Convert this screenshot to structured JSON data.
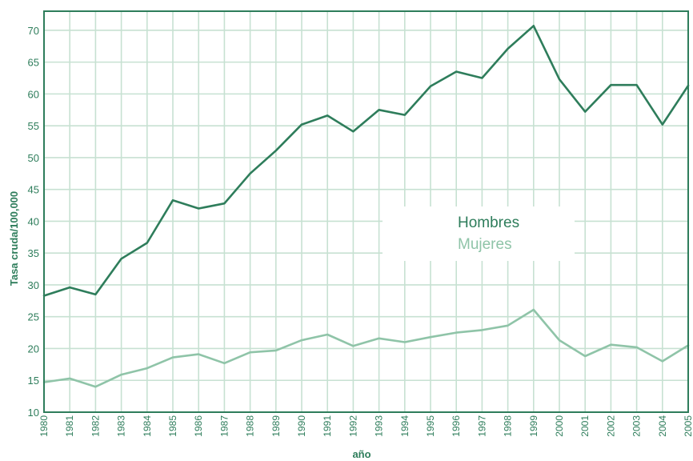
{
  "chart_data": {
    "type": "line",
    "xlabel": "año",
    "ylabel": "Tasa cruda/100,000",
    "ylim": [
      10,
      73
    ],
    "yticks": [
      10,
      15,
      20,
      25,
      30,
      35,
      40,
      45,
      50,
      55,
      60,
      65,
      70
    ],
    "x": [
      1980,
      1981,
      1982,
      1983,
      1984,
      1985,
      1986,
      1987,
      1988,
      1989,
      1990,
      1991,
      1992,
      1993,
      1994,
      1995,
      1996,
      1997,
      1998,
      1999,
      2000,
      2001,
      2002,
      2003,
      2004,
      2005
    ],
    "grid": true,
    "legend_position": "center-right",
    "series": [
      {
        "name": "Hombres",
        "color": "#2e7d5b",
        "values": [
          28.3,
          29.6,
          28.5,
          34.1,
          36.6,
          43.3,
          42.0,
          42.8,
          47.5,
          51.1,
          55.2,
          56.6,
          54.1,
          57.5,
          56.7,
          61.2,
          63.5,
          62.5,
          67.1,
          70.7,
          62.3,
          57.2,
          61.4,
          61.4,
          55.2,
          61.3
        ]
      },
      {
        "name": "Mujeres",
        "color": "#8fc4a8",
        "values": [
          14.7,
          15.3,
          14.0,
          15.9,
          16.9,
          18.6,
          19.1,
          17.7,
          19.4,
          19.7,
          21.3,
          22.2,
          20.4,
          21.6,
          21.0,
          21.8,
          22.5,
          22.9,
          23.6,
          26.1,
          21.3,
          18.8,
          20.6,
          20.2,
          18.0,
          20.5
        ]
      }
    ],
    "colors": {
      "grid": "#c7e1d2",
      "frame": "#2e7d5b",
      "text": "#2e7d5b"
    }
  }
}
